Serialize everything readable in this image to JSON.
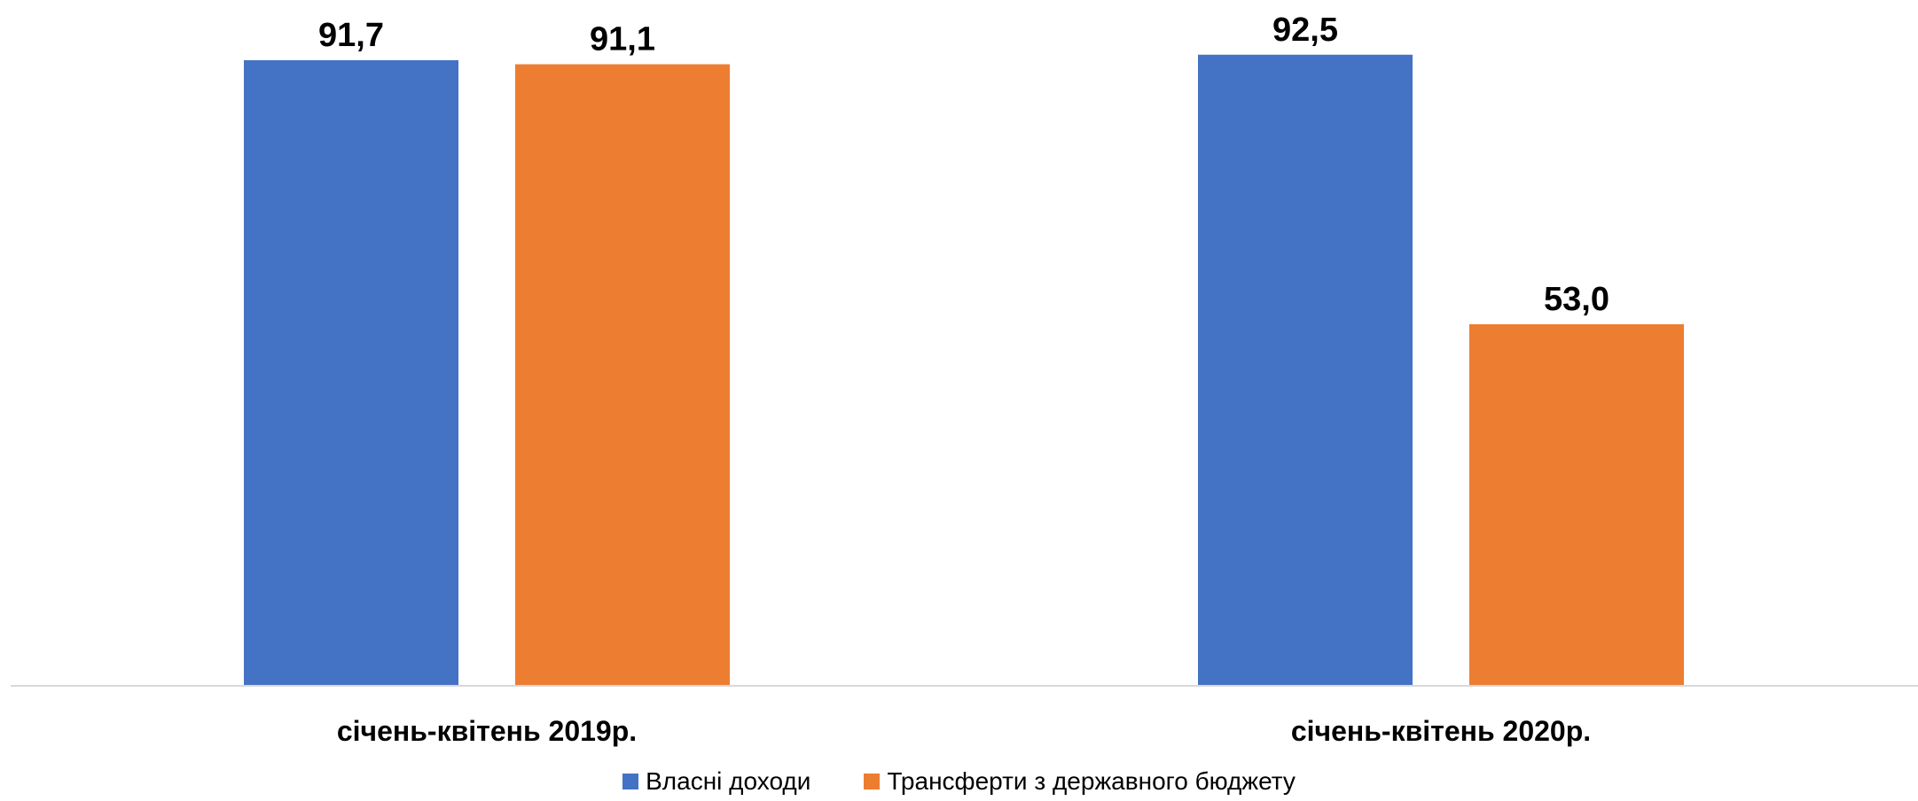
{
  "chart_data": {
    "type": "bar",
    "title": "",
    "xlabel": "",
    "ylabel": "",
    "ylim": [
      0,
      100
    ],
    "grid": false,
    "legend_position": "bottom",
    "categories": [
      "січень-квітень 2019р.",
      "січень-квітень 2020р."
    ],
    "series": [
      {
        "name": "Власні доходи",
        "color": "#4472C4",
        "values": [
          91.7,
          92.5
        ],
        "labels": [
          "91,7",
          "92,5"
        ]
      },
      {
        "name": "Трансферти з державного бюджету",
        "color": "#ED7D31",
        "values": [
          91.1,
          53.0
        ],
        "labels": [
          "91,1",
          "53,0"
        ]
      }
    ]
  }
}
